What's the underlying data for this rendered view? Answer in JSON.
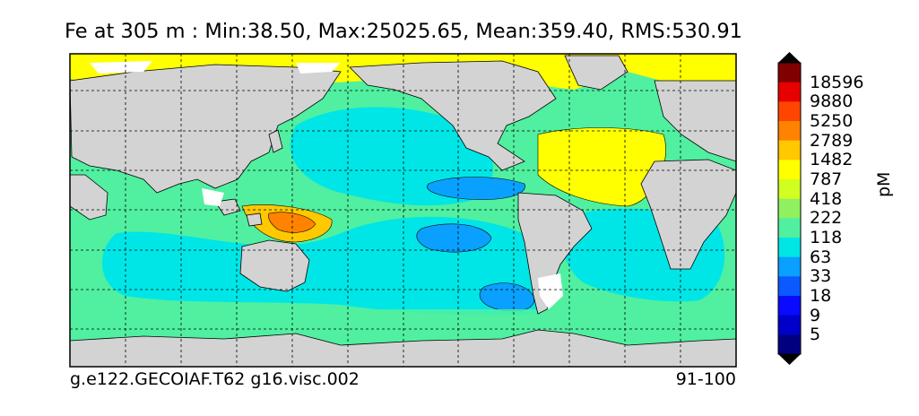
{
  "title": "Fe at 305 m : Min:38.50, Max:25025.65, Mean:359.40, RMS:530.91",
  "footer": {
    "case_name": "g.e122.GECOIAF.T62 g16.visc.002",
    "years": "91-100"
  },
  "colorbar": {
    "unit": "pM",
    "levels": [
      "18596",
      "9880",
      "5250",
      "2789",
      "1482",
      "787",
      "418",
      "222",
      "118",
      "63",
      "33",
      "18",
      "9",
      "5"
    ],
    "colors": [
      "#000080",
      "#0000c8",
      "#0a0aff",
      "#0a5aff",
      "#0aa0ff",
      "#00e6e6",
      "#50f0a0",
      "#90f060",
      "#d0ff20",
      "#ffff00",
      "#ffc800",
      "#ff8200",
      "#ff4600",
      "#e60000",
      "#800000"
    ],
    "over_color": "#000000",
    "under_color": "#000000"
  },
  "map": {
    "land_color": "#d3d3d3",
    "grid": true
  }
}
